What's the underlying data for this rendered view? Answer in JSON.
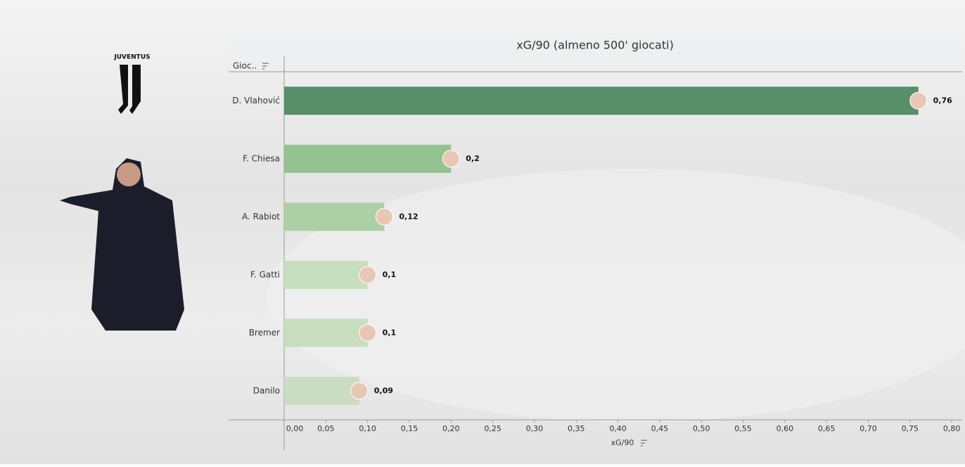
{
  "logo_text": "JUVENTUS",
  "chart_data": {
    "type": "hbar",
    "title": "xG/90 (almeno 500' giocati)",
    "category_header": "Gioc..",
    "x_label": "xG/90",
    "categories": [
      "D. Vlahović",
      "F. Chiesa",
      "A. Rabiot",
      "F. Gatti",
      "Bremer",
      "Danilo"
    ],
    "values": [
      0.76,
      0.2,
      0.12,
      0.1,
      0.1,
      0.09
    ],
    "value_labels": [
      "0,76",
      "0,2",
      "0,12",
      "0,1",
      "0,1",
      "0,09"
    ],
    "colors": [
      "#4e8a62",
      "#8fc08c",
      "#a9cf9f",
      "#c4dcbc",
      "#c4dcbc",
      "#c8dcc0"
    ],
    "xlim": [
      0,
      0.81
    ],
    "xticks": [
      {
        "value": 0,
        "label": "0,00"
      },
      {
        "value": 0.05,
        "label": "0,05"
      },
      {
        "value": 0.1,
        "label": "0,10"
      },
      {
        "value": 0.15,
        "label": "0,15"
      },
      {
        "value": 0.2,
        "label": "0,20"
      },
      {
        "value": 0.25,
        "label": "0,25"
      },
      {
        "value": 0.3,
        "label": "0,30"
      },
      {
        "value": 0.35,
        "label": "0,35"
      },
      {
        "value": 0.4,
        "label": "0,40"
      },
      {
        "value": 0.45,
        "label": "0,45"
      },
      {
        "value": 0.5,
        "label": "0,50"
      },
      {
        "value": 0.55,
        "label": "0,55"
      },
      {
        "value": 0.6,
        "label": "0,60"
      },
      {
        "value": 0.65,
        "label": "0,65"
      },
      {
        "value": 0.7,
        "label": "0,70"
      },
      {
        "value": 0.75,
        "label": "0,75"
      },
      {
        "value": 0.8,
        "label": "0,80"
      }
    ]
  }
}
